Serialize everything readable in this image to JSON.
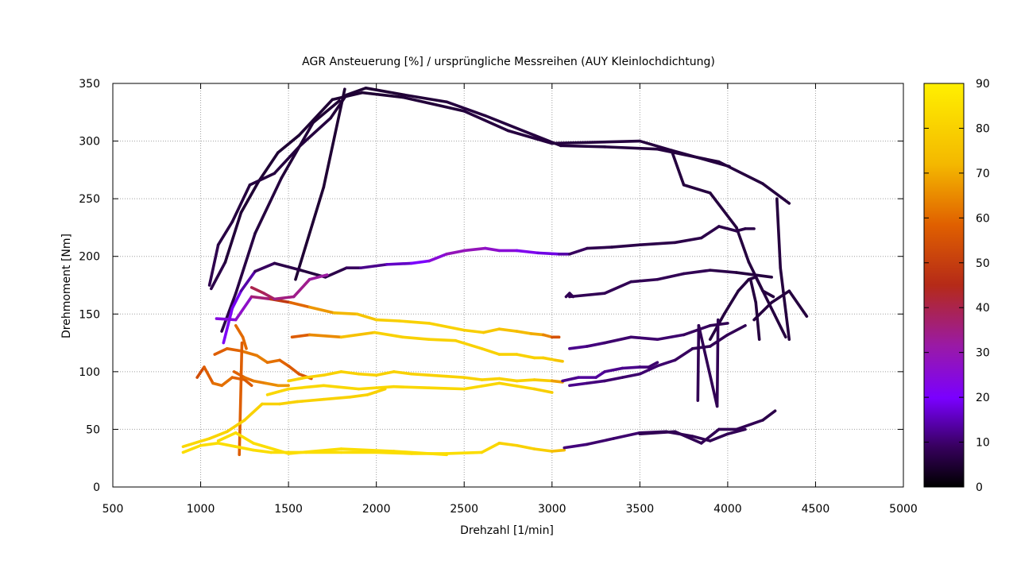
{
  "chart_data": {
    "type": "line",
    "title": "AGR Ansteuerung [%] / ursprüngliche Messreihen  (AUY Kleinlochdichtung)",
    "xlabel": "Drehzahl [1/min]",
    "ylabel": "Drehmoment [Nm]",
    "xlim": [
      500,
      5000
    ],
    "ylim": [
      0,
      350
    ],
    "x_ticks": [
      "500",
      "1000",
      "1500",
      "2000",
      "2500",
      "3000",
      "3500",
      "4000",
      "4500",
      "5000"
    ],
    "y_ticks": [
      "0",
      "50",
      "100",
      "150",
      "200",
      "250",
      "300",
      "350"
    ],
    "grid": true,
    "colorbar": {
      "label": "",
      "range": [
        0,
        90
      ],
      "ticks": [
        "0",
        "10",
        "20",
        "30",
        "40",
        "50",
        "60",
        "70",
        "80",
        "90"
      ],
      "palette": "black-purple-red-orange-yellow"
    },
    "series": [
      {
        "color_value": [
          8,
          6,
          5,
          5,
          5,
          5,
          5,
          5,
          5,
          6,
          6,
          6,
          6,
          6,
          6
        ],
        "x": [
          1060,
          1140,
          1230,
          1330,
          1440,
          1560,
          1750,
          1920,
          2150,
          2500,
          2750,
          3000,
          3500,
          3680,
          4010
        ],
        "y": [
          172,
          195,
          238,
          265,
          290,
          305,
          336,
          342,
          338,
          326,
          309,
          298,
          300,
          292,
          278
        ]
      },
      {
        "color_value": [
          6,
          6,
          6,
          6,
          6,
          6,
          6
        ],
        "x": [
          3680,
          3750,
          3900,
          4050,
          4120,
          4200,
          4330
        ],
        "y": [
          292,
          262,
          255,
          225,
          195,
          170,
          130
        ]
      },
      {
        "color_value": [
          8,
          7,
          6,
          6,
          6,
          6,
          6,
          5,
          5,
          5,
          6,
          6
        ],
        "x": [
          1050,
          1100,
          1180,
          1280,
          1420,
          1560,
          1740,
          1830,
          1940,
          2160,
          2400,
          2620
        ],
        "y": [
          175,
          210,
          230,
          262,
          272,
          295,
          320,
          340,
          346,
          340,
          334,
          322
        ]
      },
      {
        "color_value": [
          6,
          6,
          6,
          6,
          6,
          6,
          6,
          6
        ],
        "x": [
          2620,
          2900,
          3050,
          3300,
          3600,
          3950,
          4200,
          4350
        ],
        "y": [
          322,
          305,
          296,
          295,
          293,
          282,
          263,
          246
        ]
      },
      {
        "color_value": [
          7,
          7,
          6,
          6,
          5,
          5
        ],
        "x": [
          1120,
          1200,
          1310,
          1460,
          1640,
          1790
        ],
        "y": [
          135,
          168,
          220,
          268,
          316,
          335
        ]
      },
      {
        "color_value": [
          5,
          5,
          5
        ],
        "x": [
          1540,
          1700,
          1820
        ],
        "y": [
          180,
          260,
          345
        ]
      },
      {
        "color_value": [
          6,
          6,
          6
        ],
        "x": [
          4280,
          4300,
          4350
        ],
        "y": [
          250,
          190,
          128
        ]
      },
      {
        "color_value": [
          22,
          20,
          18,
          10,
          8,
          6,
          6,
          8,
          10,
          14,
          18,
          22,
          28,
          30,
          28,
          26,
          24,
          20,
          16,
          12
        ],
        "x": [
          1130,
          1180,
          1230,
          1310,
          1420,
          1570,
          1710,
          1830,
          1910,
          2060,
          2200,
          2300,
          2400,
          2500,
          2620,
          2700,
          2800,
          2920,
          3040,
          3100
        ],
        "y": [
          125,
          155,
          170,
          187,
          194,
          188,
          182,
          190,
          190,
          193,
          194,
          196,
          202,
          205,
          207,
          205,
          205,
          203,
          202,
          202
        ]
      },
      {
        "color_value": [
          10,
          8,
          7,
          7,
          7,
          7,
          7,
          7,
          7,
          7
        ],
        "x": [
          3100,
          3200,
          3340,
          3500,
          3700,
          3850,
          3950,
          4050,
          4100,
          4150
        ],
        "y": [
          202,
          207,
          208,
          210,
          212,
          216,
          226,
          222,
          224,
          224
        ]
      },
      {
        "color_value": [
          24,
          24,
          30,
          42,
          55,
          64,
          70,
          74,
          78,
          80,
          80,
          80,
          78,
          76,
          74,
          72,
          68,
          60,
          50
        ],
        "x": [
          1090,
          1200,
          1290,
          1400,
          1510,
          1620,
          1760,
          1890,
          2000,
          2130,
          2300,
          2500,
          2610,
          2700,
          2800,
          2880,
          2950,
          3000,
          3040
        ],
        "y": [
          146,
          145,
          165,
          163,
          160,
          156,
          151,
          150,
          145,
          144,
          142,
          136,
          134,
          137,
          135,
          133,
          132,
          130,
          130
        ]
      },
      {
        "color_value": [
          40,
          40,
          36,
          34,
          34,
          30
        ],
        "x": [
          1290,
          1360,
          1420,
          1530,
          1620,
          1720
        ],
        "y": [
          173,
          168,
          163,
          165,
          180,
          184
        ]
      },
      {
        "color_value": [
          55,
          60,
          70,
          80,
          80,
          80,
          80,
          80,
          80,
          80,
          80,
          80,
          78,
          74
        ],
        "x": [
          1520,
          1620,
          1800,
          1990,
          2150,
          2300,
          2450,
          2600,
          2700,
          2800,
          2900,
          2950,
          3020,
          3060
        ],
        "y": [
          130,
          132,
          130,
          134,
          130,
          128,
          127,
          120,
          115,
          115,
          112,
          112,
          110,
          109
        ]
      },
      {
        "color_value": [
          12,
          12,
          10,
          10,
          10,
          10,
          8,
          8
        ],
        "x": [
          3100,
          3200,
          3300,
          3450,
          3600,
          3750,
          3900,
          4000
        ],
        "y": [
          120,
          122,
          125,
          130,
          128,
          132,
          140,
          142
        ]
      },
      {
        "color_value": [
          58,
          58,
          60,
          64,
          62,
          60,
          58,
          56,
          56
        ],
        "x": [
          1080,
          1150,
          1230,
          1320,
          1380,
          1450,
          1500,
          1560,
          1630
        ],
        "y": [
          115,
          120,
          118,
          114,
          108,
          110,
          105,
          98,
          94
        ]
      },
      {
        "color_value": [
          52,
          56,
          60,
          62,
          60,
          58,
          56
        ],
        "x": [
          980,
          1020,
          1070,
          1120,
          1180,
          1250,
          1290
        ],
        "y": [
          95,
          104,
          90,
          88,
          95,
          93,
          88
        ]
      },
      {
        "color_value": [
          58,
          60,
          62,
          64,
          66,
          68
        ],
        "x": [
          1190,
          1250,
          1300,
          1370,
          1440,
          1500
        ],
        "y": [
          100,
          95,
          92,
          90,
          88,
          88
        ]
      },
      {
        "color_value": [
          60,
          60,
          60
        ],
        "x": [
          1200,
          1240,
          1260
        ],
        "y": [
          140,
          130,
          120
        ]
      },
      {
        "color_value": [
          58,
          58
        ],
        "x": [
          1220,
          1235
        ],
        "y": [
          28,
          125
        ]
      },
      {
        "color_value": [
          80,
          80,
          80,
          80,
          80,
          80,
          80,
          80,
          80,
          80,
          80,
          80,
          80,
          80,
          80,
          76,
          60
        ],
        "x": [
          1500,
          1600,
          1700,
          1800,
          1900,
          2000,
          2100,
          2200,
          2300,
          2400,
          2500,
          2600,
          2700,
          2800,
          2900,
          3000,
          3060
        ],
        "y": [
          92,
          95,
          97,
          100,
          98,
          97,
          100,
          98,
          97,
          96,
          95,
          93,
          94,
          92,
          93,
          92,
          91
        ]
      },
      {
        "color_value": [
          82,
          82,
          82,
          82,
          82,
          82,
          82,
          82,
          80,
          78
        ],
        "x": [
          1380,
          1500,
          1700,
          1900,
          2100,
          2300,
          2500,
          2700,
          2900,
          3000
        ],
        "y": [
          80,
          85,
          88,
          85,
          87,
          86,
          85,
          90,
          85,
          82
        ]
      },
      {
        "color_value": [
          12,
          12,
          14,
          12,
          12,
          12,
          10,
          10
        ],
        "x": [
          3060,
          3150,
          3250,
          3300,
          3400,
          3500,
          3550,
          3600
        ],
        "y": [
          92,
          95,
          95,
          100,
          103,
          104,
          104,
          108
        ]
      },
      {
        "color_value": [
          12,
          12,
          10,
          10,
          10,
          10,
          10,
          8,
          8,
          8,
          8
        ],
        "x": [
          3100,
          3200,
          3300,
          3400,
          3500,
          3600,
          3700,
          3800,
          3900,
          4000,
          4100
        ],
        "y": [
          88,
          90,
          92,
          95,
          98,
          105,
          110,
          120,
          122,
          132,
          140
        ]
      },
      {
        "color_value": [
          82,
          82,
          80,
          80,
          80
        ],
        "x": [
          900,
          1050,
          1150,
          1250,
          1350
        ],
        "y": [
          35,
          42,
          48,
          58,
          72
        ]
      },
      {
        "color_value": [
          80,
          80,
          80,
          80,
          80,
          80,
          80
        ],
        "x": [
          1350,
          1450,
          1550,
          1700,
          1850,
          1950,
          2050
        ],
        "y": [
          72,
          72,
          74,
          76,
          78,
          80,
          85
        ]
      },
      {
        "color_value": [
          84,
          84,
          84,
          84,
          84,
          84,
          84,
          84,
          84,
          84,
          84,
          84,
          80
        ],
        "x": [
          900,
          1000,
          1100,
          1200,
          1300,
          1400,
          1600,
          1800,
          2000,
          2200,
          2400,
          2600,
          2700
        ],
        "y": [
          30,
          36,
          38,
          35,
          32,
          30,
          30,
          30,
          30,
          29,
          29,
          30,
          38
        ]
      },
      {
        "color_value": [
          84,
          84,
          84,
          84,
          84,
          84,
          84
        ],
        "x": [
          1100,
          1200,
          1300,
          1500,
          1800,
          2100,
          2400
        ],
        "y": [
          40,
          47,
          38,
          29,
          33,
          31,
          28
        ]
      },
      {
        "color_value": [
          80,
          80,
          80,
          78,
          70
        ],
        "x": [
          2700,
          2800,
          2900,
          3000,
          3070
        ],
        "y": [
          38,
          36,
          33,
          31,
          32
        ]
      },
      {
        "color_value": [
          12,
          10,
          10,
          10,
          8,
          8,
          8,
          8,
          8
        ],
        "x": [
          3070,
          3200,
          3350,
          3500,
          3650,
          3800,
          3900,
          4000,
          4100
        ],
        "y": [
          34,
          37,
          42,
          47,
          48,
          44,
          40,
          46,
          50
        ]
      },
      {
        "color_value": [
          8,
          8,
          8,
          8,
          8,
          8,
          6
        ],
        "x": [
          3500,
          3700,
          3850,
          3950,
          4050,
          4200,
          4270
        ],
        "y": [
          46,
          48,
          38,
          50,
          50,
          58,
          66
        ]
      },
      {
        "color_value": [
          6,
          6,
          6,
          6,
          6,
          6,
          6
        ],
        "x": [
          3900,
          3980,
          4060,
          4120,
          4160,
          4200,
          4260
        ],
        "y": [
          128,
          150,
          170,
          180,
          182,
          170,
          165
        ]
      },
      {
        "color_value": [
          6,
          6,
          6
        ],
        "x": [
          4130,
          4160,
          4180
        ],
        "y": [
          180,
          160,
          128
        ]
      },
      {
        "color_value": [
          8,
          8,
          8,
          8,
          8,
          8,
          6,
          6
        ],
        "x": [
          3100,
          3300,
          3450,
          3600,
          3750,
          3900,
          4050,
          4250
        ],
        "y": [
          165,
          168,
          178,
          180,
          185,
          188,
          186,
          182
        ]
      },
      {
        "color_value": [
          8,
          8,
          8
        ],
        "x": [
          3080,
          3100,
          3120
        ],
        "y": [
          165,
          168,
          165
        ]
      },
      {
        "color_value": [
          6,
          6,
          6,
          6
        ],
        "x": [
          4150,
          4250,
          4350,
          4450
        ],
        "y": [
          145,
          160,
          170,
          148
        ]
      },
      {
        "color_value": [
          8,
          8,
          8,
          8
        ],
        "x": [
          3830,
          3835,
          3940,
          3945
        ],
        "y": [
          75,
          140,
          70,
          145
        ]
      }
    ]
  }
}
